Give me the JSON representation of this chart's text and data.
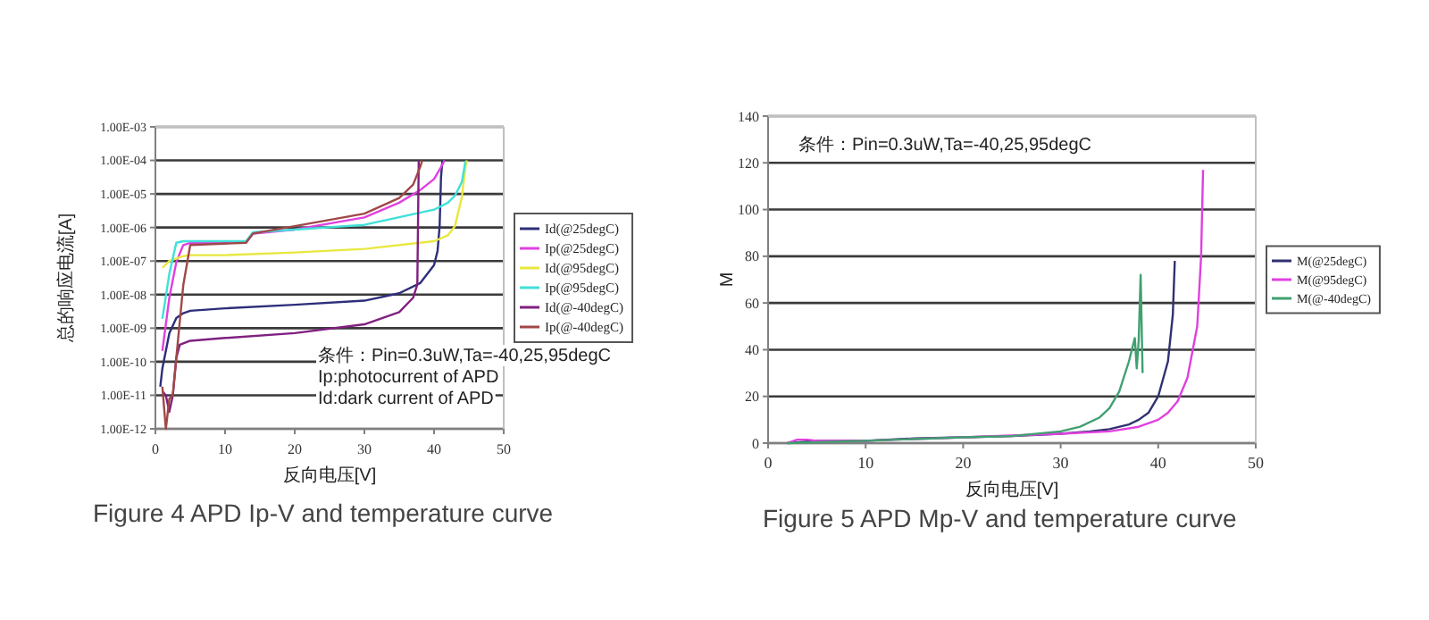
{
  "chart_data": [
    {
      "type": "line",
      "title": "Figure 4  APD Ip-V and temperature curve",
      "xlabel": "反向电压[V]",
      "ylabel": "总的响应电流[A]",
      "log": "y",
      "grid": "y",
      "legend": "right",
      "xlim": [
        0,
        50
      ],
      "xticks": [
        0,
        10,
        20,
        30,
        40,
        50
      ],
      "ylim": [
        1e-12,
        0.001
      ],
      "yticks": [
        {
          "value": 1e-12,
          "label": "1.00E-12"
        },
        {
          "value": 1e-11,
          "label": "1.00E-11"
        },
        {
          "value": 1e-10,
          "label": "1.00E-10"
        },
        {
          "value": 1e-09,
          "label": "1.00E-09"
        },
        {
          "value": 1e-08,
          "label": "1.00E-08"
        },
        {
          "value": 1e-07,
          "label": "1.00E-07"
        },
        {
          "value": 1e-06,
          "label": "1.00E-06"
        },
        {
          "value": 1e-05,
          "label": "1.00E-05"
        },
        {
          "value": 0.0001,
          "label": "1.00E-04"
        },
        {
          "value": 0.001,
          "label": "1.00E-03"
        }
      ],
      "annotations": [
        "条件：Pin=0.3uW,Ta=-40,25,95degC",
        "Ip:photocurrent of APD",
        "Id:dark current of APD"
      ],
      "series": [
        {
          "name": "Id(@25degC)",
          "color": "#2e2e7a",
          "x": [
            0.7,
            1,
            2,
            3,
            4,
            5,
            10,
            20,
            30,
            35,
            38,
            40,
            40.5,
            40.8,
            41,
            41.2
          ],
          "values": [
            1.8e-11,
            6.3e-11,
            7.1e-10,
            2e-09,
            2.8e-09,
            3.3e-09,
            3.9e-09,
            5e-09,
            6.6e-09,
            1.1e-08,
            2.2e-08,
            7.6e-08,
            2e-07,
            1.1e-06,
            3.2e-05,
            0.0001
          ]
        },
        {
          "name": "Ip(@25degC)",
          "color": "#e040e0",
          "x": [
            1,
            2,
            3,
            4,
            5,
            13,
            14,
            20,
            30,
            35,
            38,
            40,
            41,
            41.5
          ],
          "values": [
            2.1e-10,
            8.1e-09,
            9.3e-08,
            3e-07,
            3.5e-07,
            3.5e-07,
            6.6e-07,
            8.7e-07,
            2e-06,
            5.5e-06,
            1.3e-05,
            2.8e-05,
            6.3e-05,
            0.0001
          ]
        },
        {
          "name": "Id(@95degC)",
          "color": "#e8e840",
          "x": [
            1,
            2,
            4,
            5,
            10,
            20,
            30,
            40,
            42,
            43,
            44,
            44.5,
            44.7
          ],
          "values": [
            6.3e-08,
            1e-07,
            1.4e-07,
            1.5e-07,
            1.5e-07,
            1.8e-07,
            2.3e-07,
            3.9e-07,
            5.9e-07,
            1.1e-06,
            8.3e-06,
            6.3e-05,
            0.0001
          ]
        },
        {
          "name": "Ip(@95degC)",
          "color": "#40e0d8",
          "x": [
            1,
            2,
            3,
            4,
            13,
            14,
            20,
            30,
            40,
            42,
            43,
            44,
            44.5
          ],
          "values": [
            1.9e-09,
            4.2e-08,
            3.5e-07,
            3.9e-07,
            3.9e-07,
            7.2e-07,
            8.7e-07,
            1.2e-06,
            3.4e-06,
            5.5e-06,
            8.9e-06,
            2.3e-05,
            9.5e-05
          ]
        },
        {
          "name": "Id(@-40degC)",
          "color": "#802080",
          "x": [
            1,
            1.5,
            2,
            2.5,
            3,
            3.5,
            5,
            10,
            20,
            30,
            35,
            37,
            37.6,
            37.8
          ],
          "values": [
            1.3e-11,
            1e-11,
            3.2e-12,
            1e-11,
            1.3e-10,
            3.2e-10,
            4.2e-10,
            5.1e-10,
            7.1e-10,
            1.3e-09,
            3e-09,
            8.1e-09,
            2e-08,
            0.0001
          ]
        },
        {
          "name": "Ip(@-40degC)",
          "color": "#a04848",
          "x": [
            1,
            1.5,
            2,
            2.5,
            3,
            4,
            5,
            13,
            14,
            20,
            30,
            35,
            37,
            38,
            38.3
          ],
          "values": [
            1.8e-11,
            1e-12,
            7.9e-12,
            1e-11,
            1.3e-10,
            1.9e-08,
            3e-07,
            3.5e-07,
            6.6e-07,
            1.1e-06,
            2.6e-06,
            7.6e-06,
            1.9e-05,
            6.3e-05,
            0.0001
          ]
        }
      ]
    },
    {
      "type": "line",
      "title": "Figure 5 APD Mp-V and temperature curve",
      "xlabel": "反向电压[V]",
      "ylabel": "M",
      "grid": "y",
      "legend": "right",
      "xlim": [
        0,
        50
      ],
      "xticks": [
        0,
        10,
        20,
        30,
        40,
        50
      ],
      "ylim": [
        0,
        140
      ],
      "yticks": [
        0,
        20,
        40,
        60,
        80,
        100,
        120,
        140
      ],
      "annotations": [
        "条件：Pin=0.3uW,Ta=-40,25,95degC"
      ],
      "series": [
        {
          "name": "M(@25degC)",
          "color": "#303070",
          "x": [
            2,
            5,
            10,
            15,
            20,
            25,
            30,
            33,
            35,
            37,
            38,
            39,
            40,
            41,
            41.5,
            41.7
          ],
          "values": [
            0,
            1,
            1,
            2,
            2.5,
            3,
            4,
            5,
            6,
            8,
            10,
            13,
            20,
            35,
            55,
            78
          ]
        },
        {
          "name": "M(@95degC)",
          "color": "#e040e0",
          "x": [
            2,
            3,
            4,
            5,
            10,
            30,
            35,
            38,
            40,
            41,
            42,
            43,
            44,
            44.4,
            44.6
          ],
          "values": [
            0,
            1.5,
            1.5,
            1,
            1,
            4,
            5,
            7,
            10,
            13,
            18,
            28,
            50,
            80,
            117
          ]
        },
        {
          "name": "M(@-40degC)",
          "color": "#40a070",
          "x": [
            2,
            10,
            20,
            25,
            30,
            32,
            34,
            35,
            36,
            37,
            37.6,
            37.8,
            38,
            38.2,
            38.4
          ],
          "values": [
            0,
            1,
            2.5,
            3,
            5,
            7,
            11,
            15,
            22,
            35,
            45,
            32,
            44,
            72,
            30
          ]
        }
      ]
    }
  ]
}
